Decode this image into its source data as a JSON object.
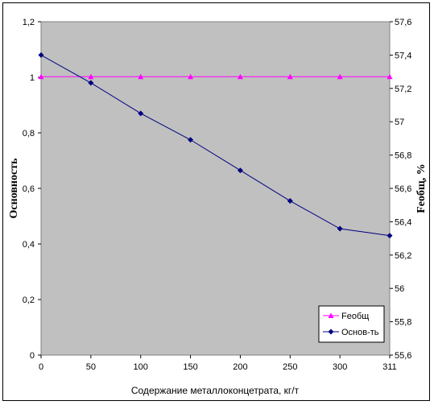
{
  "chart_data": {
    "type": "line",
    "x_categories": [
      "0",
      "50",
      "100",
      "150",
      "200",
      "250",
      "300",
      "311"
    ],
    "xlabel": "Содержание металлоконцетрата, кг/т",
    "ylabel_left": "Основность",
    "ylabel_right": "Fеобщ, %",
    "y_left": {
      "range": [
        0,
        1.2
      ],
      "ticks": [
        "0",
        "0,2",
        "0,4",
        "0,6",
        "0,8",
        "1",
        "1,2"
      ]
    },
    "y_right": {
      "range": [
        55.6,
        57.6
      ],
      "ticks": [
        "55,6",
        "55,8",
        "56",
        "56,2",
        "56,4",
        "56,6",
        "56,8",
        "57",
        "57,2",
        "57,4",
        "57,6"
      ]
    },
    "grid": false,
    "plot_background": "#c0c0c0",
    "legend_position": "bottom-right",
    "series": [
      {
        "name": "Fеобщ",
        "axis": "right",
        "color": "#ff00ff",
        "marker": "triangle",
        "values": [
          57.27,
          57.27,
          57.27,
          57.27,
          57.27,
          57.27,
          57.27,
          57.27
        ]
      },
      {
        "name": "Основ-ть",
        "axis": "left",
        "color": "#000080",
        "marker": "diamond",
        "values": [
          1.08,
          0.98,
          0.87,
          0.775,
          0.665,
          0.555,
          0.455,
          0.43
        ]
      }
    ]
  }
}
